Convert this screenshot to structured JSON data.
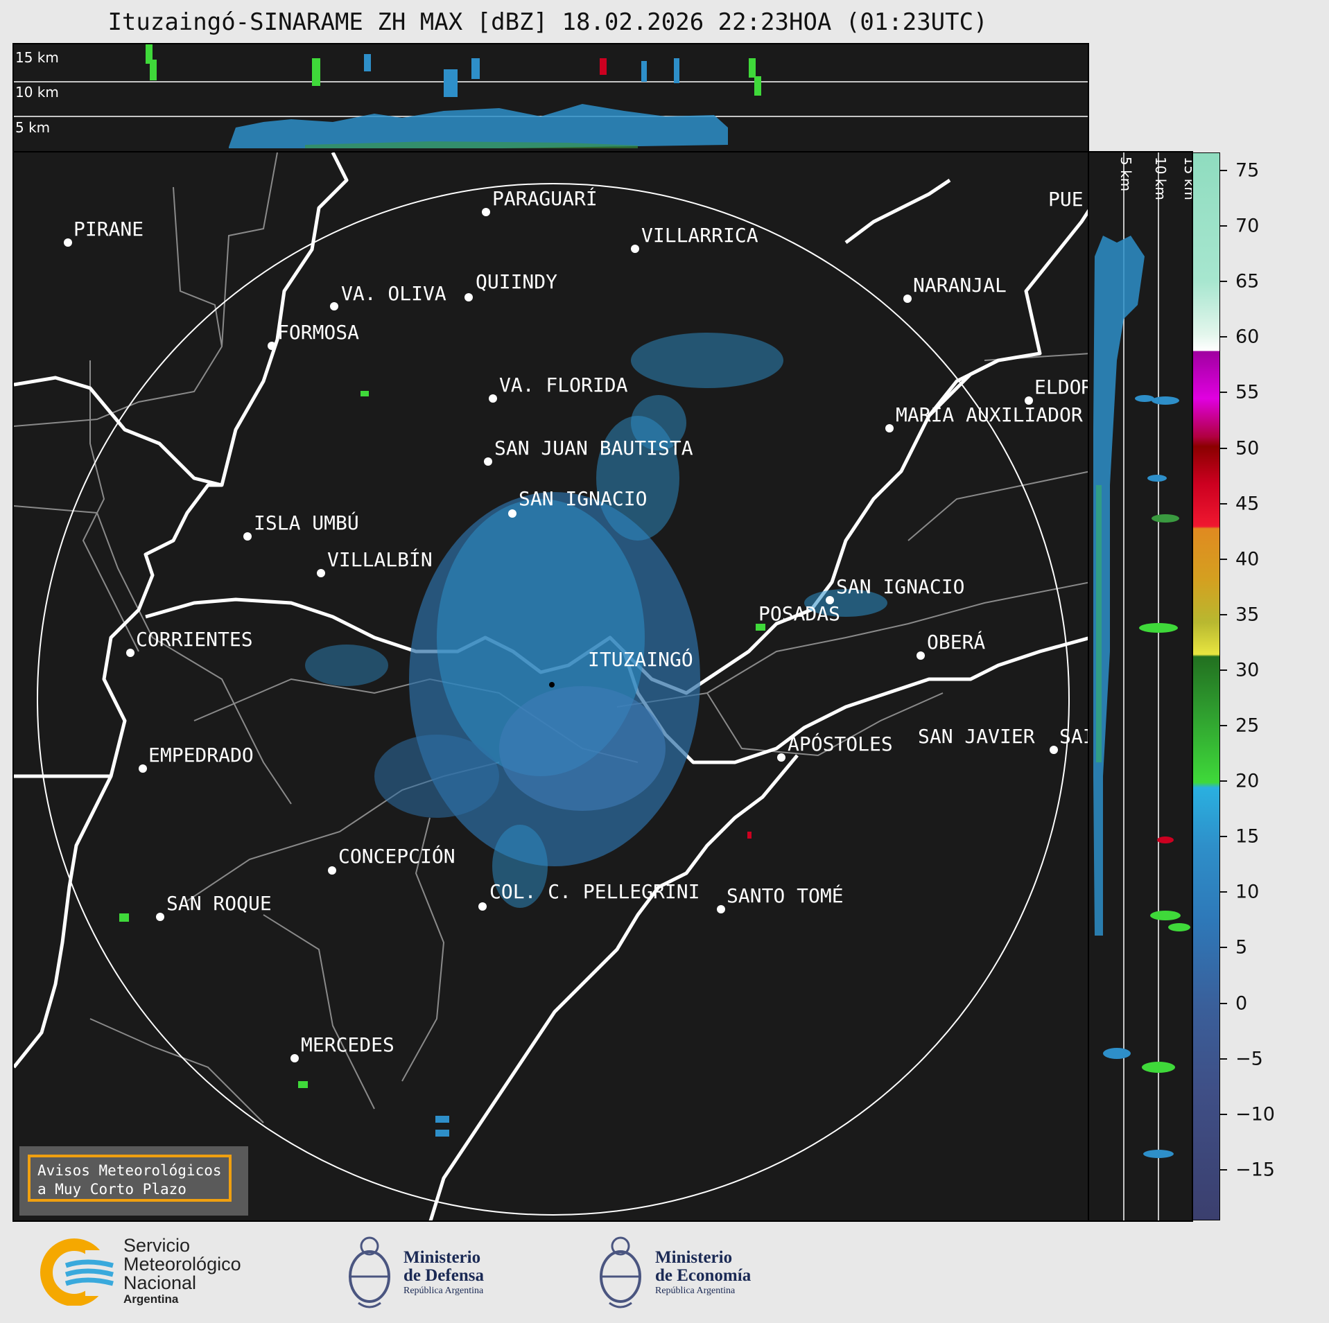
{
  "title": "Ituzaingó-SINARAME ZH MAX [dBZ] 18.02.2026 22:23HOA (01:23UTC)",
  "top_panel": {
    "altitude_labels": [
      "15 km",
      "10 km",
      "5 km"
    ]
  },
  "side_panel": {
    "altitude_labels": [
      "5 km",
      "10 km",
      "15 km"
    ]
  },
  "map": {
    "radar_site": "ITUZAINGÓ",
    "cities": [
      "PIRANE",
      "PARAGUARÍ",
      "VILLARRICA",
      "VA. OLIVA",
      "QUIINDY",
      "NARANJAL",
      "FORMOSA",
      "VA. FLORIDA",
      "ELDOR",
      "MARÍA AUXILIADOR",
      "SAN JUAN BAUTISTA",
      "SAN IGNACIO",
      "ISLA UMBÚ",
      "VILLALBÍN",
      "SAN IGNACIO",
      "POSADAS",
      "CORRIENTES",
      "OBERÁ",
      "EMPEDRADO",
      "APÓSTOLES",
      "SAN JAVIER",
      "SAI",
      "CONCEPCIÓN",
      "COL. C. PELLEGRINI",
      "SANTO TOMÉ",
      "SAN ROQUE",
      "MERCEDES",
      "PUE"
    ]
  },
  "colorbar": {
    "ticks": [
      "75",
      "70",
      "65",
      "60",
      "55",
      "50",
      "45",
      "40",
      "35",
      "30",
      "25",
      "20",
      "15",
      "10",
      "5",
      "0",
      "−5",
      "−10",
      "−15"
    ],
    "colors": {
      "low": "#3b3f6e",
      "blue": "#2e8fc9",
      "green": "#3fd93a",
      "yellow": "#e8e640",
      "orange": "#e08a20",
      "red": "#cc0020",
      "magenta": "#e000e0",
      "white": "#ffffff",
      "mint": "#8fdcbf"
    }
  },
  "avisos": {
    "line1": "Avisos Meteorológicos",
    "line2": "a Muy Corto Plazo"
  },
  "logos": {
    "smn": {
      "line1": "Servicio",
      "line2": "Meteorológico",
      "line3": "Nacional",
      "line4": "Argentina"
    },
    "defensa": {
      "line1": "Ministerio",
      "line2": "de Defensa",
      "line3": "República Argentina"
    },
    "economia": {
      "line1": "Ministerio",
      "line2": "de Economía",
      "line3": "República Argentina"
    }
  }
}
